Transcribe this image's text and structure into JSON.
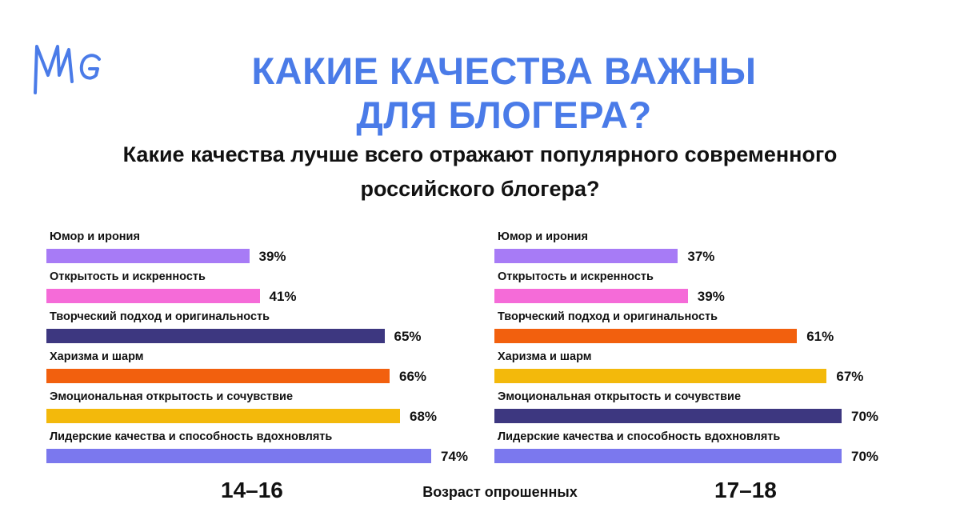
{
  "header": {
    "logo_text": "MMG",
    "title_line1": "КАКИЕ КАЧЕСТВА ВАЖНЫ",
    "title_line2": "ДЛЯ БЛОГЕРА?",
    "subtitle_line1": "Какие качества лучше всего отражают популярного современного",
    "subtitle_line2": "российского блогера?"
  },
  "footer": {
    "axis_caption": "Возраст опрошенных"
  },
  "chart_data": [
    {
      "type": "bar",
      "orientation": "horizontal",
      "group_label": "14–16",
      "categories": [
        "Юмор и ирония",
        "Открытость и искренность",
        "Творческий подход и оригинальность",
        "Харизма и шарм",
        "Эмоциональная открытость и сочувствие",
        "Лидерские качества и способность вдохновлять"
      ],
      "values": [
        39,
        41,
        65,
        66,
        68,
        74
      ],
      "value_labels": [
        "39%",
        "41%",
        "65%",
        "66%",
        "68%",
        "74%"
      ],
      "colors": [
        "#a77bf6",
        "#f56bd8",
        "#3d3780",
        "#f2600e",
        "#f3b90b",
        "#7b78ee"
      ],
      "xlim": [
        0,
        100
      ]
    },
    {
      "type": "bar",
      "orientation": "horizontal",
      "group_label": "17–18",
      "categories": [
        "Юмор и ирония",
        "Открытость и искренность",
        "Творческий подход и оригинальность",
        "Харизма и шарм",
        "Эмоциональная открытость и сочувствие",
        "Лидерские качества и способность вдохновлять"
      ],
      "values": [
        37,
        39,
        61,
        67,
        70,
        70
      ],
      "value_labels": [
        "37%",
        "39%",
        "61%",
        "67%",
        "70%",
        "70%"
      ],
      "colors": [
        "#a77bf6",
        "#f56bd8",
        "#f2600e",
        "#f3b90b",
        "#3d3780",
        "#7b78ee"
      ],
      "xlim": [
        0,
        100
      ]
    }
  ]
}
